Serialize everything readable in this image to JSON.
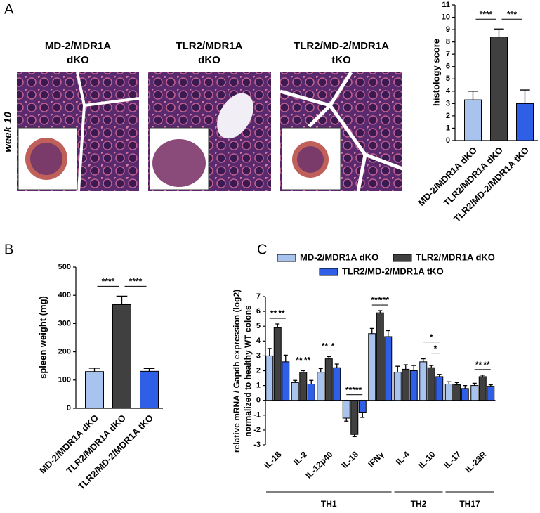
{
  "panel_labels": [
    "A",
    "B",
    "C"
  ],
  "micrographs": {
    "row_label": "week 10",
    "titles": [
      [
        "MD-2/MDR1A",
        "dKO"
      ],
      [
        "TLR2/MDR1A",
        "dKO"
      ],
      [
        "TLR2/MD-2/MDR1A",
        "tKO"
      ]
    ]
  },
  "chart_data": [
    {
      "type": "bar",
      "ylabel": "histology score",
      "categories": [
        "MD-2/MDR1A dKO",
        "TLR2/MDR1A dKO",
        "TLR2/MD-2/MDR1A tKO"
      ],
      "values": [
        3.3,
        8.4,
        3.0
      ],
      "errors": [
        0.7,
        0.65,
        1.1
      ],
      "colors": [
        "#a9c3ef",
        "#404040",
        "#2f5fe6"
      ],
      "ylim": [
        0,
        11
      ],
      "yticks": [
        0,
        1,
        2,
        3,
        4,
        5,
        6,
        7,
        8,
        9,
        10,
        11
      ],
      "annotations": [
        {
          "from": 0,
          "to": 1,
          "text": "****"
        },
        {
          "from": 1,
          "to": 2,
          "text": "***"
        }
      ]
    },
    {
      "type": "bar",
      "ylabel": "spleen weight (mg)",
      "categories": [
        "MD-2/MDR1A dKO",
        "TLR2/MDR1A dKO",
        "TLR2/MD-2/MDR1A tKO"
      ],
      "values": [
        130,
        367,
        131
      ],
      "errors": [
        12,
        30,
        10
      ],
      "colors": [
        "#a9c3ef",
        "#404040",
        "#2f5fe6"
      ],
      "ylim": [
        0,
        500
      ],
      "yticks": [
        0,
        100,
        200,
        300,
        400,
        500
      ],
      "annotations": [
        {
          "from": 0,
          "to": 1,
          "text": "****"
        },
        {
          "from": 1,
          "to": 2,
          "text": "****"
        }
      ]
    },
    {
      "type": "grouped_bar",
      "ylabel": [
        "relative mRNA / Gapdh expression (log2)",
        "normalized to healthy WT colons"
      ],
      "categories": [
        "IL-1ß",
        "IL-2",
        "IL-12p40",
        "IL-18",
        "IFNγ",
        "IL-4",
        "IL-10",
        "IL-17",
        "IL-23R"
      ],
      "series": [
        {
          "name": "MD-2/MDR1A dKO",
          "color": "#a9c3ef",
          "values": [
            3.0,
            1.2,
            1.9,
            -1.2,
            4.5,
            1.9,
            2.6,
            1.1,
            1.0
          ],
          "errors": [
            0.5,
            0.15,
            0.25,
            0.2,
            0.35,
            0.4,
            0.2,
            0.15,
            0.15
          ]
        },
        {
          "name": "TLR2/MDR1A dKO",
          "color": "#404040",
          "values": [
            4.9,
            1.9,
            2.8,
            -2.3,
            5.9,
            2.1,
            2.2,
            1.05,
            1.6
          ],
          "errors": [
            0.25,
            0.1,
            0.15,
            0.15,
            0.15,
            0.3,
            0.15,
            0.15,
            0.1
          ]
        },
        {
          "name": "TLR2/MD-2/MDR1A tKO",
          "color": "#2f5fe6",
          "values": [
            2.6,
            1.1,
            2.2,
            -0.8,
            4.3,
            2.0,
            1.6,
            0.8,
            0.95
          ],
          "errors": [
            0.45,
            0.25,
            0.25,
            0.35,
            0.4,
            0.35,
            0.15,
            0.2,
            0.1
          ]
        }
      ],
      "ylim": [
        -3,
        7
      ],
      "yticks": [
        -3,
        -2,
        -1,
        0,
        1,
        2,
        3,
        4,
        5,
        6,
        7
      ],
      "annotations": [
        {
          "category": 0,
          "from": 0,
          "to": 1,
          "text": "**"
        },
        {
          "category": 0,
          "from": 1,
          "to": 2,
          "text": "**"
        },
        {
          "category": 1,
          "from": 0,
          "to": 1,
          "text": "**"
        },
        {
          "category": 1,
          "from": 1,
          "to": 2,
          "text": "**"
        },
        {
          "category": 2,
          "from": 0,
          "to": 1,
          "text": "**"
        },
        {
          "category": 2,
          "from": 1,
          "to": 2,
          "text": "*"
        },
        {
          "category": 3,
          "from": 0,
          "to": 1,
          "text": "***"
        },
        {
          "category": 3,
          "from": 1,
          "to": 2,
          "text": "**"
        },
        {
          "category": 4,
          "from": 0,
          "to": 1,
          "text": "***"
        },
        {
          "category": 4,
          "from": 1,
          "to": 2,
          "text": "***"
        },
        {
          "category": 6,
          "from": 0,
          "to": 2,
          "text": "*"
        },
        {
          "category": 6,
          "from": 1,
          "to": 2,
          "text": "*"
        },
        {
          "category": 8,
          "from": 0,
          "to": 1,
          "text": "**"
        },
        {
          "category": 8,
          "from": 1,
          "to": 2,
          "text": "**"
        }
      ],
      "groups": [
        {
          "label": "TH1",
          "from": 0,
          "to": 4
        },
        {
          "label": "TH2",
          "from": 5,
          "to": 6
        },
        {
          "label": "TH17",
          "from": 7,
          "to": 8
        }
      ]
    }
  ]
}
